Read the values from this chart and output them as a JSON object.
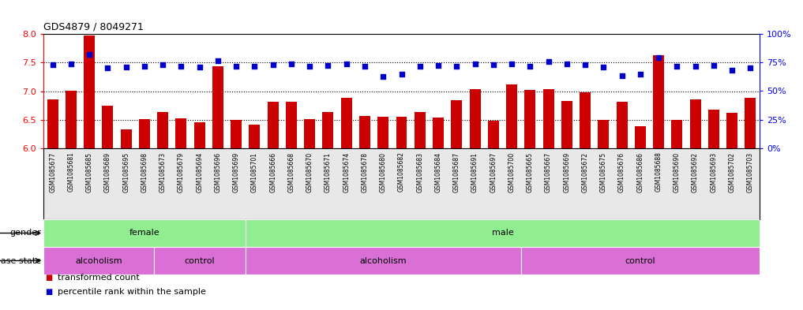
{
  "title": "GDS4879 / 8049271",
  "samples": [
    "GSM1085677",
    "GSM1085681",
    "GSM1085685",
    "GSM1085689",
    "GSM1085695",
    "GSM1085698",
    "GSM1085673",
    "GSM1085679",
    "GSM1085694",
    "GSM1085696",
    "GSM1085699",
    "GSM1085701",
    "GSM1085666",
    "GSM1085668",
    "GSM1085670",
    "GSM1085671",
    "GSM1085674",
    "GSM1085678",
    "GSM1085680",
    "GSM1085682",
    "GSM1085683",
    "GSM1085684",
    "GSM1085687",
    "GSM1085691",
    "GSM1085697",
    "GSM1085700",
    "GSM1085665",
    "GSM1085667",
    "GSM1085669",
    "GSM1085672",
    "GSM1085675",
    "GSM1085676",
    "GSM1085686",
    "GSM1085688",
    "GSM1085690",
    "GSM1085692",
    "GSM1085693",
    "GSM1085702",
    "GSM1085703"
  ],
  "bar_values": [
    6.85,
    7.01,
    7.97,
    6.75,
    6.33,
    6.51,
    6.63,
    6.52,
    6.45,
    7.44,
    6.5,
    6.42,
    6.82,
    6.82,
    6.51,
    6.64,
    6.88,
    6.57,
    6.55,
    6.55,
    6.64,
    6.54,
    6.84,
    7.04,
    6.48,
    7.12,
    7.02,
    7.03,
    6.83,
    6.98,
    6.5,
    6.82,
    6.38,
    7.63,
    6.5,
    6.85,
    6.67,
    6.62,
    6.88
  ],
  "percentile_values": [
    73.0,
    73.5,
    82.0,
    70.5,
    71.0,
    72.0,
    73.0,
    71.5,
    71.0,
    76.5,
    72.0,
    71.5,
    73.0,
    74.0,
    72.0,
    72.5,
    73.5,
    72.0,
    63.0,
    64.5,
    72.0,
    72.5,
    72.0,
    73.5,
    73.0,
    74.0,
    71.5,
    76.0,
    73.5,
    73.0,
    71.0,
    63.5,
    64.5,
    79.0,
    71.5,
    72.0,
    72.5,
    68.0,
    70.5
  ],
  "ylim_left": [
    6.0,
    8.0
  ],
  "ylim_right": [
    0,
    100
  ],
  "yticks_left": [
    6.0,
    6.5,
    7.0,
    7.5,
    8.0
  ],
  "yticks_right": [
    0,
    25,
    50,
    75,
    100
  ],
  "ytick_labels_right": [
    "0%",
    "25%",
    "50%",
    "75%",
    "100%"
  ],
  "bar_color": "#CC0000",
  "marker_color": "#0000CC",
  "grid_dotted_vals": [
    6.5,
    7.0,
    7.5
  ],
  "gender_spans": [
    {
      "label": "female",
      "start": 0,
      "end": 10,
      "color": "#90EE90"
    },
    {
      "label": "male",
      "start": 11,
      "end": 38,
      "color": "#90EE90"
    }
  ],
  "disease_spans": [
    {
      "label": "alcoholism",
      "start": 0,
      "end": 5,
      "color": "#DA70D6"
    },
    {
      "label": "control",
      "start": 6,
      "end": 10,
      "color": "#DA70D6"
    },
    {
      "label": "alcoholism",
      "start": 11,
      "end": 25,
      "color": "#DA70D6"
    },
    {
      "label": "control",
      "start": 26,
      "end": 38,
      "color": "#DA70D6"
    }
  ],
  "legend": [
    {
      "label": "transformed count",
      "color": "#CC0000"
    },
    {
      "label": "percentile rank within the sample",
      "color": "#0000CC"
    }
  ],
  "xtick_bg": "#E8E8E8",
  "bar_width": 0.6,
  "marker_size": 16
}
